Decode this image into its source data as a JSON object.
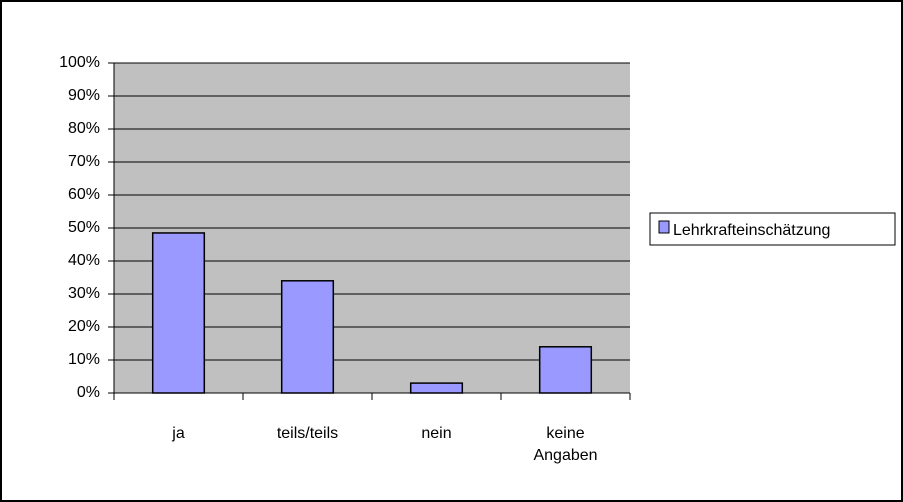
{
  "chart_data": {
    "type": "bar",
    "categories": [
      "ja",
      "teils/teils",
      "nein",
      "keine Angaben"
    ],
    "series": [
      {
        "name": "Lehrkrafteinschätzung",
        "color": "#9999ff",
        "values": [
          48.5,
          34,
          3,
          14
        ]
      }
    ],
    "ylim": [
      0,
      100
    ],
    "yticks": [
      {
        "value": 0,
        "label": "0%"
      },
      {
        "value": 10,
        "label": "10%"
      },
      {
        "value": 20,
        "label": "20%"
      },
      {
        "value": 30,
        "label": "30%"
      },
      {
        "value": 40,
        "label": "40%"
      },
      {
        "value": 50,
        "label": "50%"
      },
      {
        "value": 60,
        "label": "60%"
      },
      {
        "value": 70,
        "label": "70%"
      },
      {
        "value": 80,
        "label": "80%"
      },
      {
        "value": 90,
        "label": "90%"
      },
      {
        "value": 100,
        "label": "100%"
      }
    ],
    "grid": true,
    "legend": "right"
  }
}
